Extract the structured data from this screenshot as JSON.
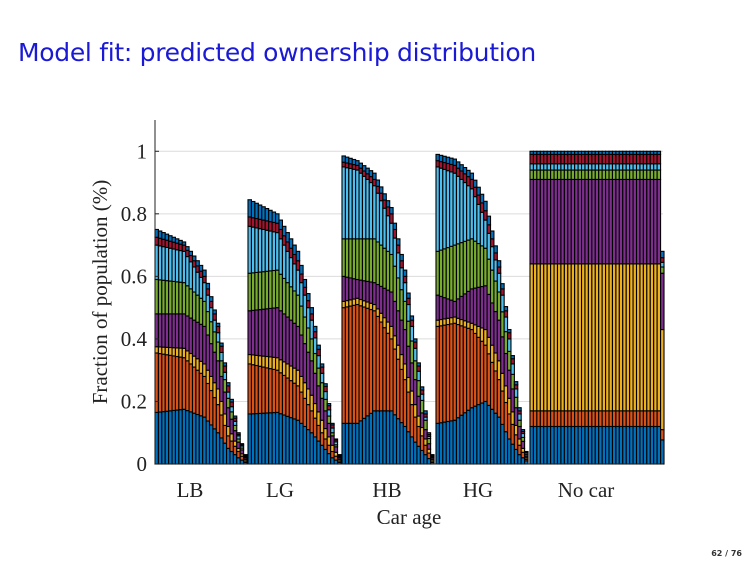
{
  "slide": {
    "title": "Model fit: predicted ownership distribution",
    "page": "62 / 76"
  },
  "chart_data": {
    "type": "bar",
    "stacked": true,
    "xlabel": "Car age",
    "ylabel": "Fraction of population (%)",
    "ylim": [
      0,
      1.1
    ],
    "yticks": [
      "0",
      "0.2",
      "0.4",
      "0.6",
      "0.8",
      "1"
    ],
    "ytick_values": [
      0,
      0.2,
      0.4,
      0.6,
      0.8,
      1
    ],
    "grid": true,
    "layer_colors": [
      "#0072BD",
      "#D95319",
      "#EDB120",
      "#7E2F8E",
      "#77AC30",
      "#4DBEEE",
      "#A2142F",
      "#0072BD"
    ],
    "groups": [
      {
        "label": "LB",
        "n_bars": 27,
        "keys": [
          0,
          8,
          14,
          18,
          21,
          24,
          26
        ],
        "cumulative": [
          [
            0.165,
            0.355,
            0.375,
            0.48,
            0.59,
            0.7,
            0.725,
            0.75
          ],
          [
            0.175,
            0.34,
            0.37,
            0.48,
            0.58,
            0.68,
            0.7,
            0.71
          ],
          [
            0.15,
            0.28,
            0.32,
            0.44,
            0.52,
            0.58,
            0.6,
            0.62
          ],
          [
            0.1,
            0.19,
            0.24,
            0.33,
            0.39,
            0.42,
            0.44,
            0.45
          ],
          [
            0.05,
            0.09,
            0.12,
            0.18,
            0.21,
            0.23,
            0.25,
            0.26
          ],
          [
            0.02,
            0.04,
            0.05,
            0.07,
            0.08,
            0.09,
            0.095,
            0.1
          ],
          [
            0.005,
            0.01,
            0.015,
            0.02,
            0.022,
            0.025,
            0.028,
            0.03
          ]
        ]
      },
      {
        "label": "LG",
        "n_bars": 27,
        "keys": [
          0,
          8,
          14,
          18,
          21,
          24,
          26
        ],
        "cumulative": [
          [
            0.16,
            0.32,
            0.35,
            0.49,
            0.61,
            0.76,
            0.79,
            0.845
          ],
          [
            0.165,
            0.3,
            0.34,
            0.5,
            0.62,
            0.74,
            0.77,
            0.8
          ],
          [
            0.14,
            0.25,
            0.3,
            0.44,
            0.54,
            0.62,
            0.65,
            0.68
          ],
          [
            0.1,
            0.17,
            0.22,
            0.33,
            0.4,
            0.46,
            0.48,
            0.5
          ],
          [
            0.06,
            0.1,
            0.14,
            0.21,
            0.26,
            0.29,
            0.31,
            0.32
          ],
          [
            0.02,
            0.04,
            0.06,
            0.09,
            0.1,
            0.115,
            0.125,
            0.13
          ],
          [
            0.005,
            0.01,
            0.015,
            0.02,
            0.023,
            0.026,
            0.028,
            0.03
          ]
        ]
      },
      {
        "label": "HB",
        "n_bars": 27,
        "keys": [
          0,
          4,
          9,
          14,
          18,
          21,
          24,
          26
        ],
        "cumulative": [
          [
            0.13,
            0.5,
            0.52,
            0.6,
            0.72,
            0.95,
            0.965,
            0.985
          ],
          [
            0.13,
            0.51,
            0.53,
            0.59,
            0.72,
            0.94,
            0.955,
            0.97
          ],
          [
            0.17,
            0.49,
            0.51,
            0.58,
            0.72,
            0.89,
            0.91,
            0.93
          ],
          [
            0.17,
            0.4,
            0.44,
            0.55,
            0.67,
            0.77,
            0.8,
            0.82
          ],
          [
            0.12,
            0.27,
            0.32,
            0.43,
            0.52,
            0.58,
            0.6,
            0.62
          ],
          [
            0.07,
            0.15,
            0.19,
            0.27,
            0.33,
            0.37,
            0.39,
            0.4
          ],
          [
            0.03,
            0.06,
            0.08,
            0.11,
            0.14,
            0.15,
            0.16,
            0.17
          ],
          [
            0.005,
            0.01,
            0.015,
            0.02,
            0.023,
            0.026,
            0.028,
            0.03
          ]
        ]
      },
      {
        "label": "HG",
        "n_bars": 27,
        "keys": [
          0,
          5,
          10,
          14,
          18,
          21,
          24,
          26
        ],
        "cumulative": [
          [
            0.13,
            0.44,
            0.46,
            0.54,
            0.68,
            0.95,
            0.97,
            0.99
          ],
          [
            0.14,
            0.45,
            0.47,
            0.52,
            0.7,
            0.93,
            0.955,
            0.975
          ],
          [
            0.18,
            0.43,
            0.45,
            0.56,
            0.72,
            0.88,
            0.91,
            0.93
          ],
          [
            0.2,
            0.38,
            0.43,
            0.57,
            0.69,
            0.78,
            0.81,
            0.84
          ],
          [
            0.15,
            0.27,
            0.33,
            0.46,
            0.55,
            0.61,
            0.63,
            0.65
          ],
          [
            0.08,
            0.16,
            0.21,
            0.3,
            0.36,
            0.4,
            0.42,
            0.43
          ],
          [
            0.03,
            0.06,
            0.08,
            0.12,
            0.14,
            0.16,
            0.17,
            0.18
          ],
          [
            0.01,
            0.015,
            0.02,
            0.025,
            0.03,
            0.035,
            0.038,
            0.04
          ]
        ]
      },
      {
        "label": "No car",
        "n_bars": 39,
        "keys": [
          0,
          37,
          38
        ],
        "cumulative": [
          [
            0.12,
            0.17,
            0.64,
            0.91,
            0.94,
            0.96,
            0.99,
            1.0
          ],
          [
            0.12,
            0.17,
            0.64,
            0.91,
            0.94,
            0.96,
            0.99,
            1.0
          ],
          [
            0.077,
            0.11,
            0.43,
            0.61,
            0.63,
            0.645,
            0.66,
            0.68
          ]
        ]
      }
    ]
  }
}
